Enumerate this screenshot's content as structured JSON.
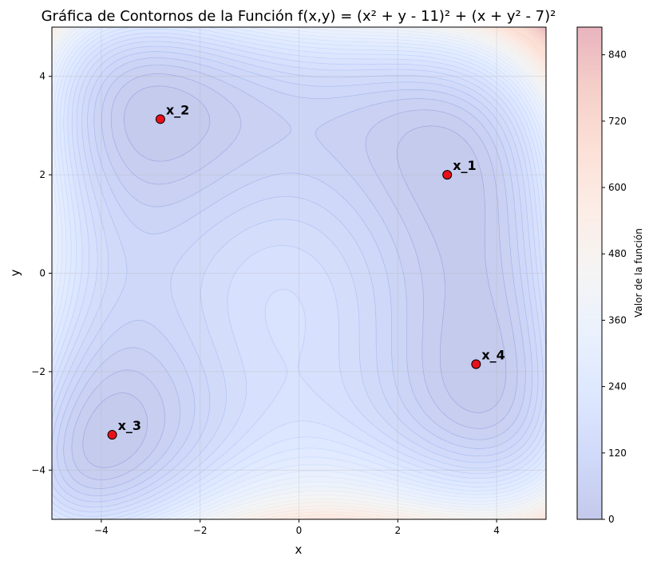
{
  "chart_data": {
    "type": "contour",
    "title": "Gráfica de Contornos de la Función f(x,y) = (x² + y - 11)² + (x + y² - 7)²",
    "xlabel": "x",
    "ylabel": "y",
    "xlim": [
      -5,
      5
    ],
    "ylim": [
      -5,
      5
    ],
    "xticks": [
      -4,
      -2,
      0,
      2,
      4
    ],
    "yticks": [
      -4,
      -2,
      0,
      2,
      4
    ],
    "xtick_labels": [
      "−4",
      "−2",
      "0",
      "2",
      "4"
    ],
    "ytick_labels": [
      "−4",
      "−2",
      "0",
      "2",
      "4"
    ],
    "grid": true,
    "colormap": "coolwarm",
    "function": "(x² + y - 11)² + (x + y² - 7)²",
    "colorbar": {
      "label": "Valor de la función",
      "range": [
        0,
        890
      ],
      "ticks": [
        0,
        120,
        240,
        360,
        480,
        600,
        720,
        840
      ]
    },
    "points": [
      {
        "label": "x_1",
        "x": 3.0,
        "y": 2.0
      },
      {
        "label": "x_2",
        "x": -2.805,
        "y": 3.131
      },
      {
        "label": "x_3",
        "x": -3.779,
        "y": -3.283
      },
      {
        "label": "x_4",
        "x": 3.584,
        "y": -1.848
      }
    ],
    "point_color": "#e8101a"
  }
}
